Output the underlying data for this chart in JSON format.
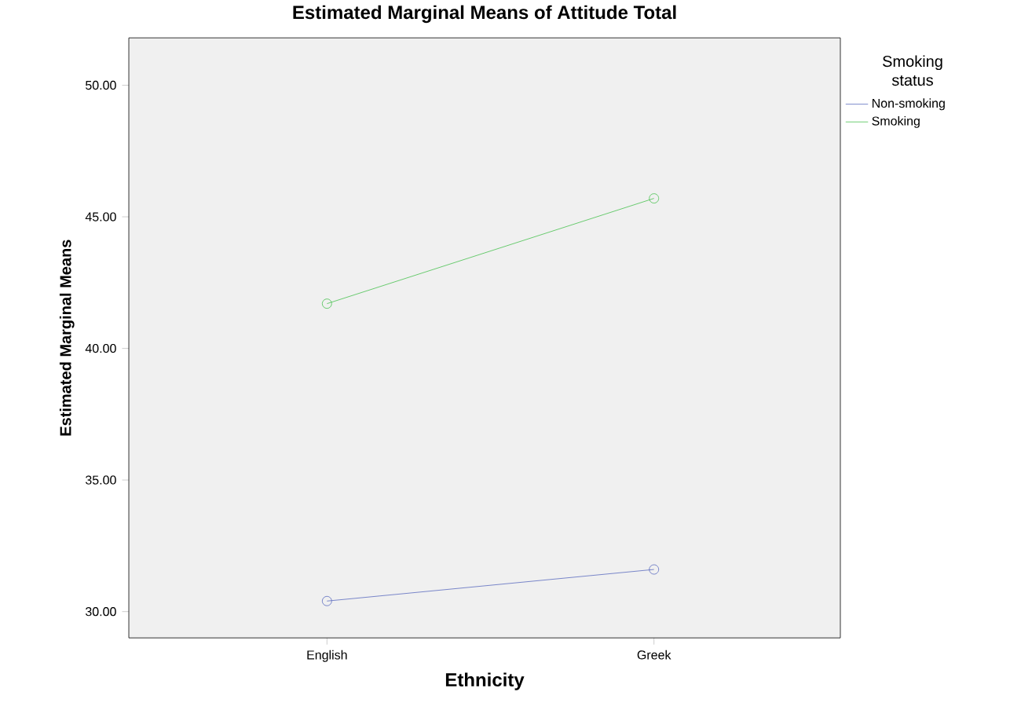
{
  "chart_data": {
    "type": "line",
    "title": "Estimated Marginal Means of Attitude Total",
    "xlabel": "Ethnicity",
    "ylabel": "Estimated Marginal Means",
    "legend_title": "Smoking status",
    "categories": [
      "English",
      "Greek"
    ],
    "series": [
      {
        "name": "Non-smoking",
        "color": "#5b6bbf",
        "values": [
          30.4,
          31.6
        ]
      },
      {
        "name": "Smoking",
        "color": "#47c14f",
        "values": [
          41.7,
          45.7
        ]
      }
    ],
    "ylim": [
      29,
      51.8
    ],
    "yticks": [
      {
        "value": 30,
        "label": "30.00"
      },
      {
        "value": 35,
        "label": "35.00"
      },
      {
        "value": 40,
        "label": "40.00"
      },
      {
        "value": 45,
        "label": "45.00"
      },
      {
        "value": 50,
        "label": "50.00"
      }
    ],
    "marker": "circle",
    "legend": "top right"
  }
}
